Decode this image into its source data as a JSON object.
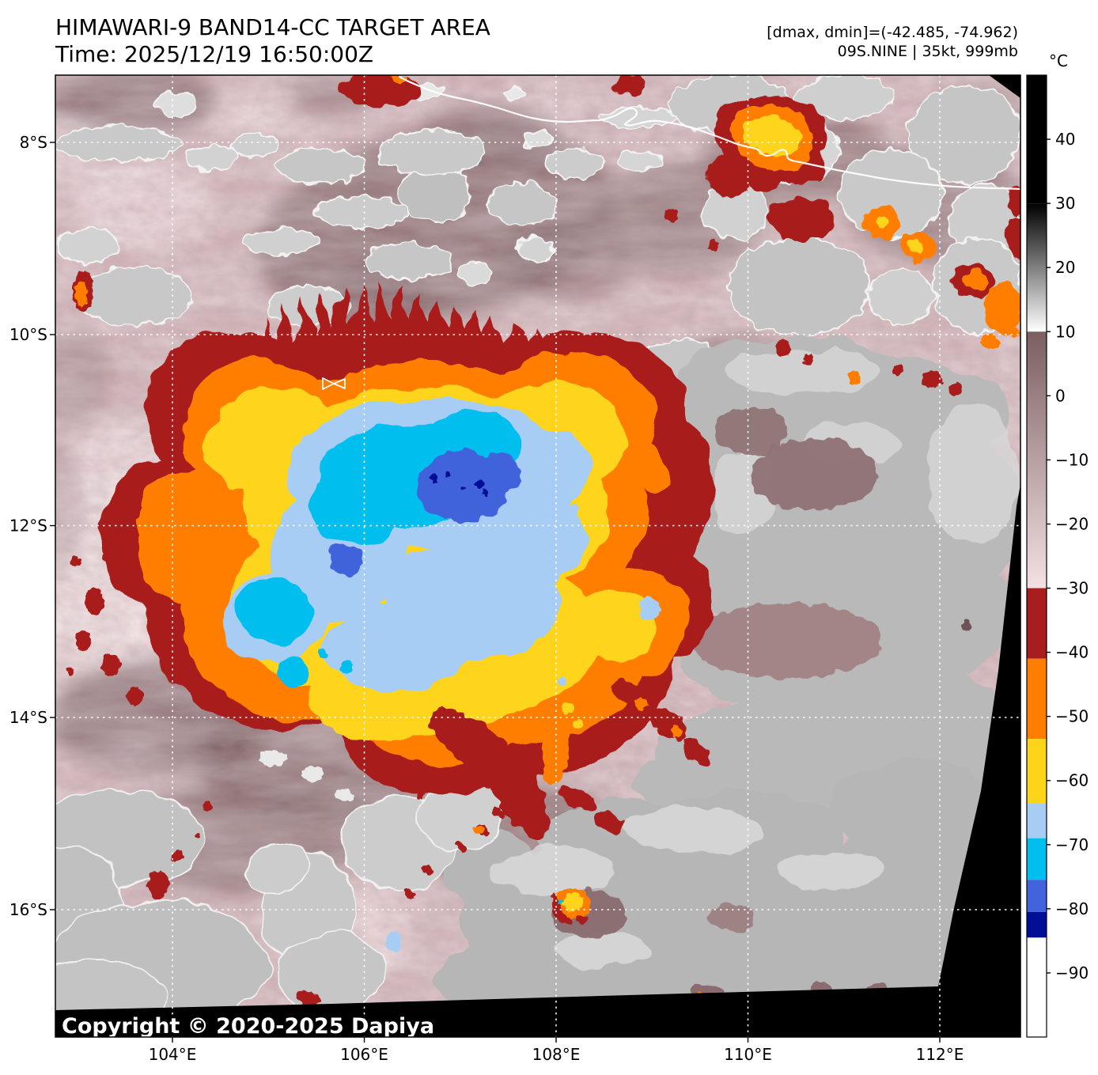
{
  "header": {
    "title": "HIMAWARI-9 BAND14-CC TARGET AREA",
    "time_line": "Time: 2025/12/19 16:50:00Z",
    "dmax_dmin": "[dmax, dmin]=(-42.485, -74.962)",
    "storm_info": "09S.NINE | 35kt, 999mb"
  },
  "map": {
    "copyright": "Copyright © 2020-2025 Dapiya",
    "lon_labels": [
      "104°E",
      "106°E",
      "108°E",
      "110°E",
      "112°E"
    ],
    "lat_labels": [
      "8°S",
      "10°S",
      "12°S",
      "14°S",
      "16°S"
    ]
  },
  "colorbar": {
    "unit": "°C",
    "range_top_c": 50,
    "range_bottom_c": -100,
    "ticks": [
      {
        "value": 40,
        "label": "40"
      },
      {
        "value": 30,
        "label": "30"
      },
      {
        "value": 20,
        "label": "20"
      },
      {
        "value": 10,
        "label": "10"
      },
      {
        "value": 0,
        "label": "0"
      },
      {
        "value": -10,
        "label": "−10"
      },
      {
        "value": -20,
        "label": "−20"
      },
      {
        "value": -30,
        "label": "−30"
      },
      {
        "value": -40,
        "label": "−40"
      },
      {
        "value": -50,
        "label": "−50"
      },
      {
        "value": -60,
        "label": "−60"
      },
      {
        "value": -70,
        "label": "−70"
      },
      {
        "value": -80,
        "label": "−80"
      },
      {
        "value": -90,
        "label": "−90"
      }
    ],
    "segments": [
      {
        "from": 50,
        "to": 30,
        "color": "#000000"
      },
      {
        "from": 30,
        "to": 10,
        "gradient": "grey"
      },
      {
        "from": 10,
        "to": -30,
        "gradient": "mauve"
      },
      {
        "from": -30,
        "to": -41,
        "color": "#a81e1e"
      },
      {
        "from": -41,
        "to": -53.5,
        "color": "#ff7e00"
      },
      {
        "from": -53.5,
        "to": -63.5,
        "color": "#fed41b"
      },
      {
        "from": -63.5,
        "to": -69,
        "color": "#a8cdf4"
      },
      {
        "from": -69,
        "to": -75.5,
        "color": "#00bfef"
      },
      {
        "from": -75.5,
        "to": -80.5,
        "color": "#4164dc"
      },
      {
        "from": -80.5,
        "to": -84.5,
        "color": "#000f96"
      },
      {
        "from": -84.5,
        "to": -100,
        "color": "#ffffff"
      }
    ]
  },
  "palette": {
    "deep_convection_red": "#a81e1e",
    "cold_orange": "#ff7e00",
    "cold_gold": "#fed41b",
    "cold_light_blue": "#a8cdf4",
    "cold_cyan": "#00bfef",
    "cold_royal_blue": "#4164dc",
    "cold_navy": "#000f96",
    "warm_pink": "#e9d4d7",
    "warm_mauve": "#7d6063",
    "cloud_grey": "#bdbdbd",
    "void_black": "#000000",
    "coastline_white": "#ffffff",
    "gridline_white": "#ffffff"
  }
}
